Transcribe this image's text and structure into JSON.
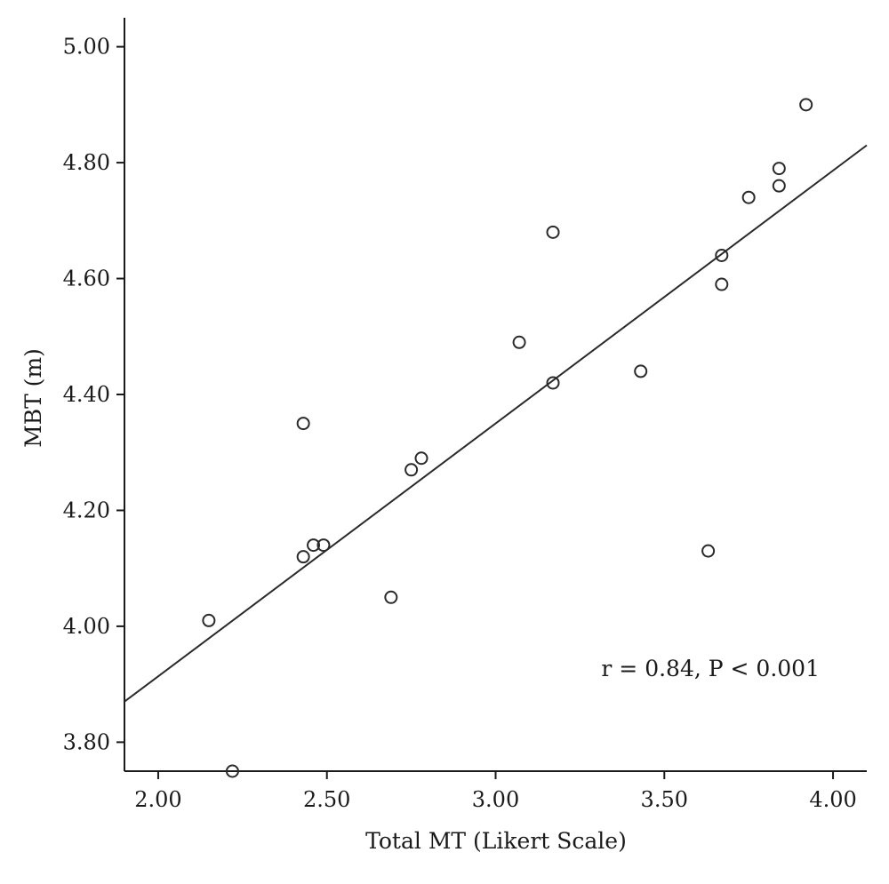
{
  "chart_data": {
    "type": "scatter",
    "xlabel": "Total MT (Likert Scale)",
    "ylabel": "MBT (m)",
    "xlim": [
      1.9,
      4.1
    ],
    "ylim": [
      3.75,
      5.05
    ],
    "xticks": [
      2.0,
      2.5,
      3.0,
      3.5,
      4.0
    ],
    "xtick_labels": [
      "2.00",
      "2.50",
      "3.00",
      "3.50",
      "4.00"
    ],
    "yticks": [
      3.8,
      4.0,
      4.2,
      4.4,
      4.6,
      4.8,
      5.0
    ],
    "ytick_labels": [
      "3.80",
      "4.00",
      "4.20",
      "4.40",
      "4.60",
      "4.80",
      "5.00"
    ],
    "grid": false,
    "points": [
      {
        "x": 2.15,
        "y": 4.01
      },
      {
        "x": 2.22,
        "y": 3.75
      },
      {
        "x": 2.43,
        "y": 4.12
      },
      {
        "x": 2.43,
        "y": 4.35
      },
      {
        "x": 2.46,
        "y": 4.14
      },
      {
        "x": 2.49,
        "y": 4.14
      },
      {
        "x": 2.69,
        "y": 4.05
      },
      {
        "x": 2.75,
        "y": 4.27
      },
      {
        "x": 2.78,
        "y": 4.29
      },
      {
        "x": 3.07,
        "y": 4.49
      },
      {
        "x": 3.17,
        "y": 4.42
      },
      {
        "x": 3.17,
        "y": 4.68
      },
      {
        "x": 3.43,
        "y": 4.44
      },
      {
        "x": 3.63,
        "y": 4.13
      },
      {
        "x": 3.67,
        "y": 4.59
      },
      {
        "x": 3.67,
        "y": 4.64
      },
      {
        "x": 3.75,
        "y": 4.74
      },
      {
        "x": 3.84,
        "y": 4.76
      },
      {
        "x": 3.84,
        "y": 4.79
      },
      {
        "x": 3.92,
        "y": 4.9
      }
    ],
    "fit_line": {
      "x": [
        1.9,
        4.1
      ],
      "y": [
        3.87,
        4.83
      ]
    },
    "annotation": "r = 0.84, P < 0.001"
  }
}
